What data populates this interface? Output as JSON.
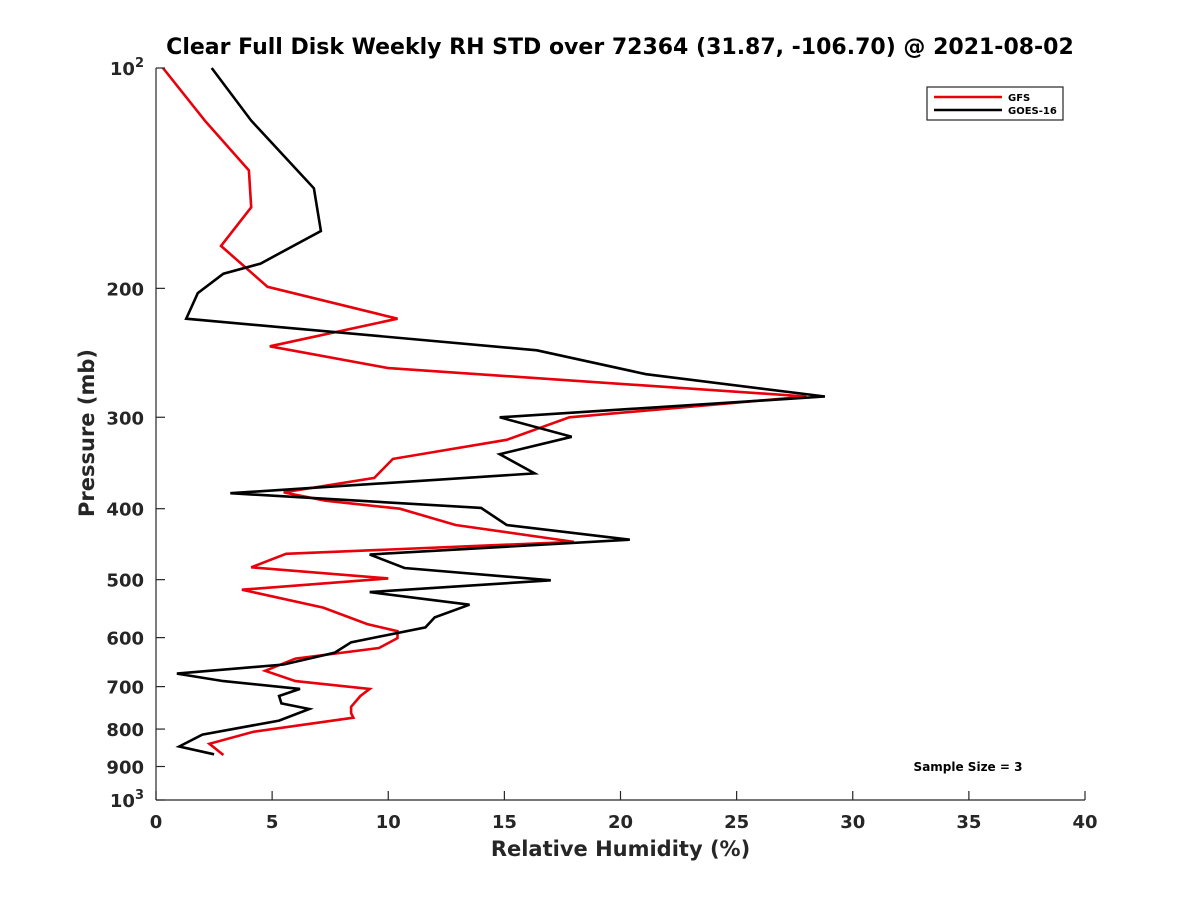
{
  "chart_data": {
    "type": "line",
    "title": "Clear Full Disk Weekly RH STD over 72364 (31.87, -106.70) @ 2021-08-02",
    "xlabel": "Relative Humidity (%)",
    "ylabel": "Pressure (mb)",
    "xlim": [
      0,
      40
    ],
    "ylim": [
      100,
      1000
    ],
    "y_scale": "log",
    "y_reversed": true,
    "x_ticks": [
      0,
      5,
      10,
      15,
      20,
      25,
      30,
      35,
      40
    ],
    "y_ticks": [
      {
        "value": 100,
        "base": "10",
        "exp": "2"
      },
      {
        "value": 200,
        "label": "200"
      },
      {
        "value": 300,
        "label": "300"
      },
      {
        "value": 400,
        "label": "400"
      },
      {
        "value": 500,
        "label": "500"
      },
      {
        "value": 600,
        "label": "600"
      },
      {
        "value": 700,
        "label": "700"
      },
      {
        "value": 800,
        "label": "800"
      },
      {
        "value": 900,
        "label": "900"
      },
      {
        "value": 1000,
        "base": "10",
        "exp": "3"
      }
    ],
    "grid": false,
    "legend_position": "top-right",
    "annotation": "Sample Size = 3",
    "series": [
      {
        "name": "GFS",
        "color": "#e8000b",
        "points": [
          [
            0.3,
            100
          ],
          [
            2.1,
            118
          ],
          [
            4.0,
            138
          ],
          [
            4.1,
            155
          ],
          [
            2.8,
            175
          ],
          [
            4.8,
            199
          ],
          [
            10.4,
            220
          ],
          [
            4.9,
            240
          ],
          [
            10.0,
            257
          ],
          [
            28.0,
            281
          ],
          [
            17.8,
            300
          ],
          [
            15.1,
            322
          ],
          [
            10.2,
            342
          ],
          [
            9.4,
            363
          ],
          [
            5.5,
            380
          ],
          [
            7.3,
            390
          ],
          [
            10.5,
            400
          ],
          [
            12.9,
            421
          ],
          [
            18.0,
            444
          ],
          [
            5.6,
            461
          ],
          [
            4.1,
            481
          ],
          [
            10.0,
            498
          ],
          [
            3.7,
            516
          ],
          [
            7.2,
            546
          ],
          [
            9.1,
            575
          ],
          [
            10.4,
            588
          ],
          [
            10.4,
            601
          ],
          [
            9.6,
            620
          ],
          [
            6.0,
            641
          ],
          [
            4.7,
            666
          ],
          [
            6.0,
            688
          ],
          [
            9.2,
            705
          ],
          [
            8.8,
            721
          ],
          [
            8.4,
            746
          ],
          [
            8.4,
            761
          ],
          [
            8.5,
            772
          ],
          [
            4.2,
            807
          ],
          [
            2.3,
            838
          ],
          [
            2.9,
            868
          ]
        ]
      },
      {
        "name": "GOES-16",
        "color": "#000000",
        "points": [
          [
            2.4,
            100
          ],
          [
            4.1,
            118
          ],
          [
            6.8,
            146
          ],
          [
            7.1,
            167
          ],
          [
            4.5,
            185
          ],
          [
            2.9,
            191
          ],
          [
            1.8,
            203
          ],
          [
            1.3,
            220
          ],
          [
            16.4,
            243
          ],
          [
            21.1,
            262
          ],
          [
            28.8,
            281
          ],
          [
            14.8,
            300
          ],
          [
            17.9,
            319
          ],
          [
            14.8,
            337
          ],
          [
            16.3,
            358
          ],
          [
            3.2,
            381
          ],
          [
            14.0,
            399
          ],
          [
            15.1,
            421
          ],
          [
            20.4,
            441
          ],
          [
            9.2,
            462
          ],
          [
            10.7,
            482
          ],
          [
            17.0,
            501
          ],
          [
            9.2,
            520
          ],
          [
            13.5,
            541
          ],
          [
            12.0,
            563
          ],
          [
            11.6,
            581
          ],
          [
            8.4,
            609
          ],
          [
            7.7,
            629
          ],
          [
            5.5,
            653
          ],
          [
            0.9,
            672
          ],
          [
            2.9,
            688
          ],
          [
            6.2,
            705
          ],
          [
            5.3,
            721
          ],
          [
            5.4,
            738
          ],
          [
            6.6,
            751
          ],
          [
            5.3,
            779
          ],
          [
            2.0,
            814
          ],
          [
            1.0,
            845
          ],
          [
            2.5,
            866
          ]
        ]
      }
    ]
  }
}
